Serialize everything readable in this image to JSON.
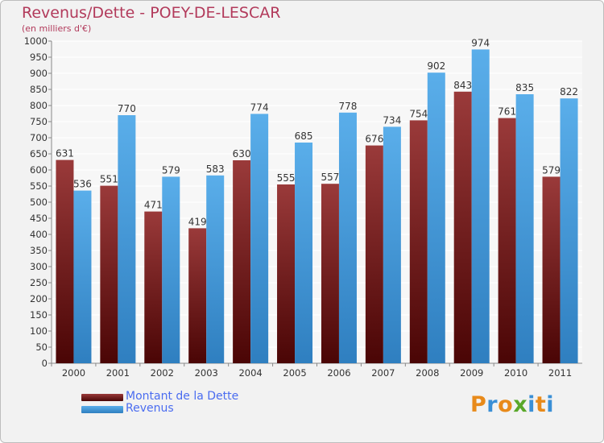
{
  "chart_data": {
    "type": "bar",
    "title": "Revenus/Dette - POEY-DE-LESCAR",
    "subtitle": "(en milliers d'€)",
    "categories": [
      "2000",
      "2001",
      "2002",
      "2003",
      "2004",
      "2005",
      "2006",
      "2007",
      "2008",
      "2009",
      "2010",
      "2011"
    ],
    "series": [
      {
        "name": "Montant de la Dette",
        "color": "#8b1c22",
        "values": [
          631,
          551,
          471,
          419,
          630,
          555,
          557,
          676,
          754,
          843,
          761,
          579
        ]
      },
      {
        "name": "Revenus",
        "color": "#4ea4e6",
        "values": [
          536,
          770,
          579,
          583,
          774,
          685,
          778,
          734,
          902,
          974,
          835,
          822
        ]
      }
    ],
    "ylim": [
      0,
      1000
    ],
    "yticks": [
      0,
      50,
      100,
      150,
      200,
      250,
      300,
      350,
      400,
      450,
      500,
      550,
      600,
      650,
      700,
      750,
      800,
      850,
      900,
      950,
      1000
    ],
    "grid": true,
    "legend": "bottom-left"
  },
  "logo": {
    "letters": [
      "P",
      "r",
      "o",
      "x",
      "i",
      "t",
      "i"
    ],
    "colors": [
      "#e88a1a",
      "#3a8fd6",
      "#e88a1a",
      "#5aa82a",
      "#3a8fd6",
      "#e88a1a",
      "#3a8fd6"
    ]
  }
}
